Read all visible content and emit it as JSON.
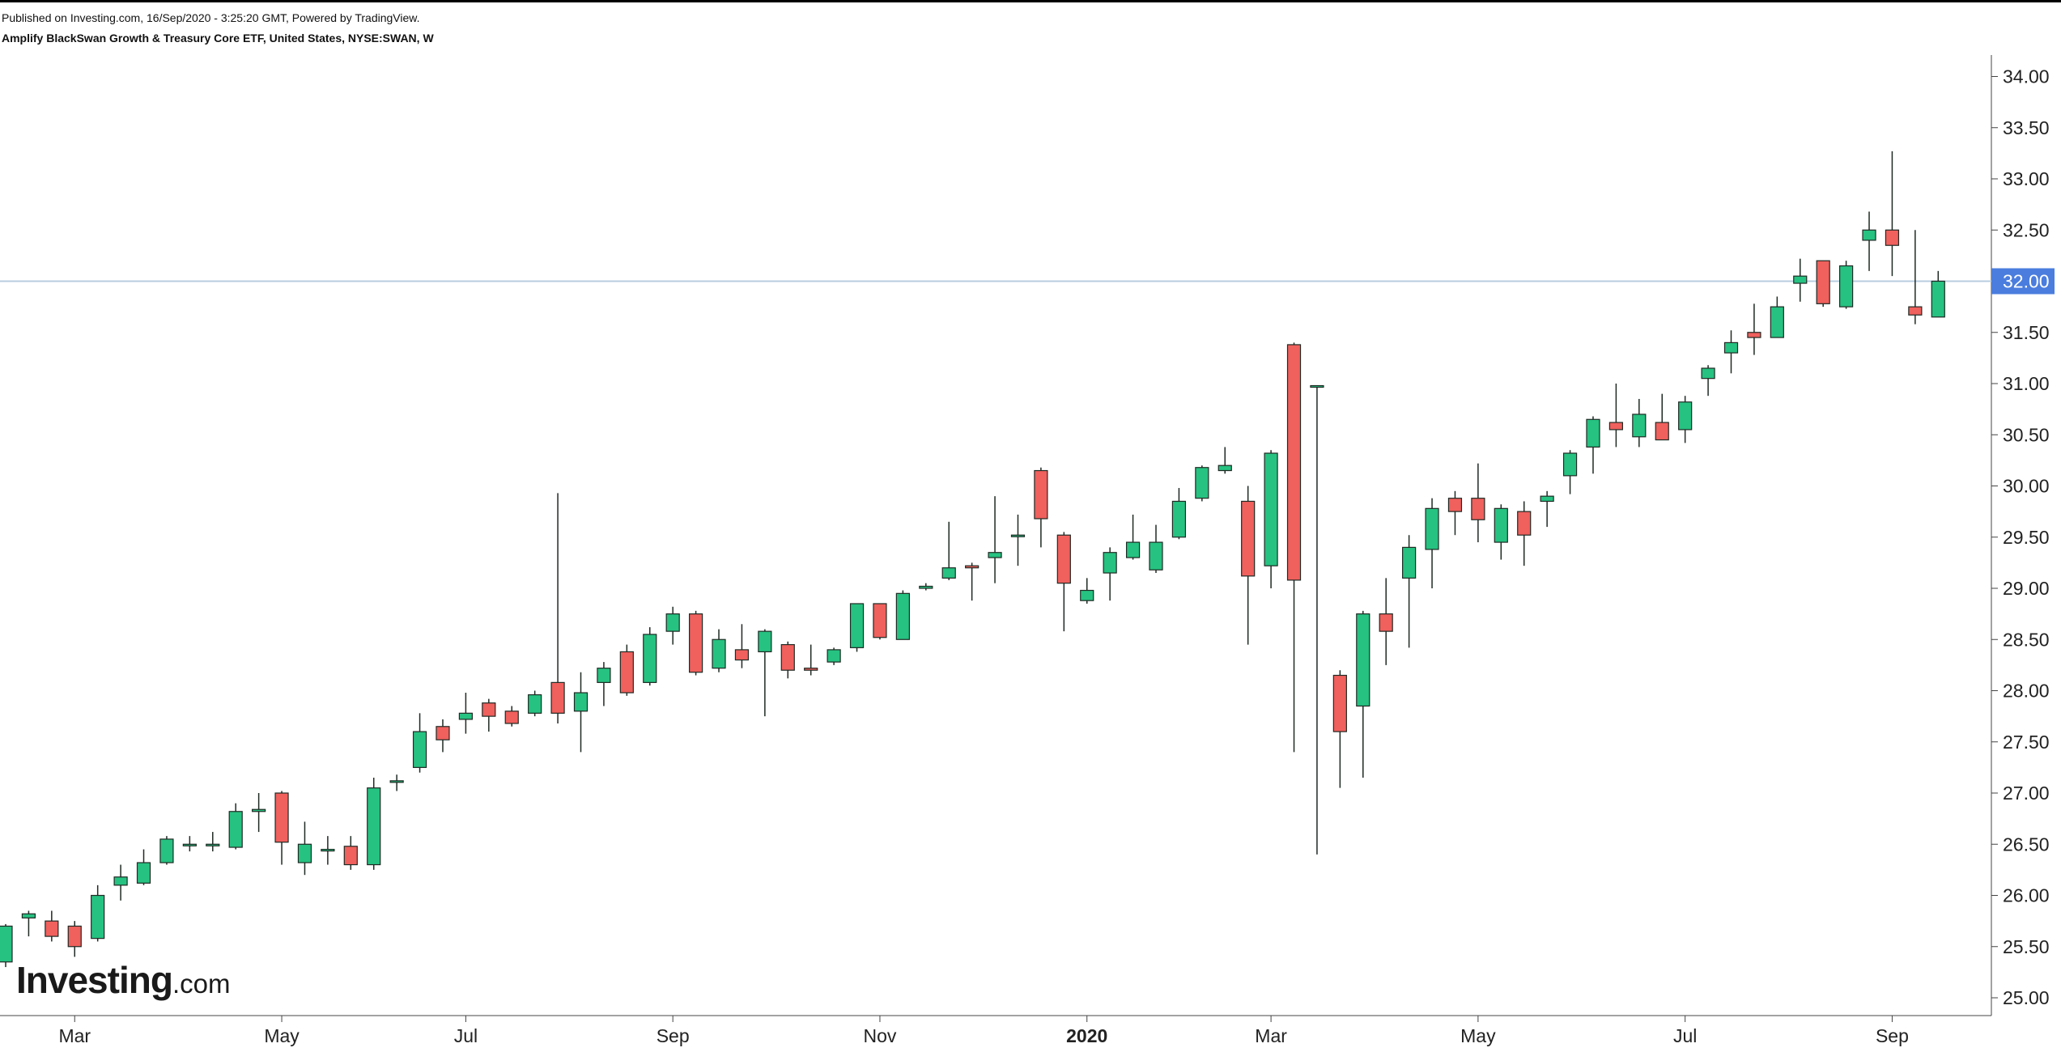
{
  "header": {
    "published": "Published on Investing.com, 16/Sep/2020 - 3:25:20 GMT, Powered by TradingView.",
    "title": "Amplify BlackSwan Growth & Treasury Core ETF, United States, NYSE:SWAN, W"
  },
  "logo": {
    "brand": "Investing",
    "suffix": ".com"
  },
  "colors": {
    "up": "#26c281",
    "down": "#f0605d",
    "outline": "#1f2a24",
    "last_price_badge": "#4a7dde",
    "price_line": "#b8cce0"
  },
  "chart_data": {
    "type": "candlestick",
    "title": "Amplify BlackSwan Growth & Treasury Core ETF, United States, NYSE:SWAN, W",
    "interval": "weekly",
    "ylim": [
      24.8,
      34.3
    ],
    "yticks": [
      "25.00",
      "25.50",
      "26.00",
      "26.50",
      "27.00",
      "27.50",
      "28.00",
      "28.50",
      "29.00",
      "29.50",
      "30.00",
      "30.50",
      "31.00",
      "31.50",
      "32.00",
      "32.50",
      "33.00",
      "33.50",
      "34.00"
    ],
    "last_price": 32.0,
    "last_price_label": "32.00",
    "xticks": [
      {
        "label": "Mar",
        "bar": 3,
        "bold": false
      },
      {
        "label": "May",
        "bar": 12,
        "bold": false
      },
      {
        "label": "Jul",
        "bar": 20,
        "bold": false
      },
      {
        "label": "Sep",
        "bar": 29,
        "bold": false
      },
      {
        "label": "Nov",
        "bar": 38,
        "bold": false
      },
      {
        "label": "2020",
        "bar": 47,
        "bold": true
      },
      {
        "label": "Mar",
        "bar": 55,
        "bold": false
      },
      {
        "label": "May",
        "bar": 64,
        "bold": false
      },
      {
        "label": "Jul",
        "bar": 73,
        "bold": false
      },
      {
        "label": "Sep",
        "bar": 82,
        "bold": false
      }
    ],
    "bars": [
      [
        25.35,
        25.7,
        25.3,
        25.72
      ],
      [
        25.78,
        25.82,
        25.6,
        25.85
      ],
      [
        25.75,
        25.6,
        25.55,
        25.85
      ],
      [
        25.7,
        25.5,
        25.4,
        25.75
      ],
      [
        25.58,
        26.0,
        25.55,
        26.1
      ],
      [
        26.1,
        26.18,
        25.95,
        26.3
      ],
      [
        26.12,
        26.32,
        26.1,
        26.45
      ],
      [
        26.32,
        26.55,
        26.3,
        26.58
      ],
      [
        26.5,
        26.5,
        26.43,
        26.58
      ],
      [
        26.5,
        26.5,
        26.43,
        26.62
      ],
      [
        26.47,
        26.82,
        26.45,
        26.9
      ],
      [
        26.82,
        26.84,
        26.62,
        27.0
      ],
      [
        27.0,
        26.52,
        26.3,
        27.02
      ],
      [
        26.32,
        26.5,
        26.2,
        26.72
      ],
      [
        26.45,
        26.45,
        26.3,
        26.58
      ],
      [
        26.48,
        26.3,
        26.25,
        26.58
      ],
      [
        26.3,
        27.05,
        26.25,
        27.15
      ],
      [
        27.12,
        27.12,
        27.02,
        27.18
      ],
      [
        27.25,
        27.6,
        27.2,
        27.78
      ],
      [
        27.65,
        27.52,
        27.4,
        27.72
      ],
      [
        27.72,
        27.78,
        27.58,
        27.98
      ],
      [
        27.88,
        27.75,
        27.6,
        27.92
      ],
      [
        27.8,
        27.68,
        27.65,
        27.85
      ],
      [
        27.78,
        27.96,
        27.75,
        28.0
      ],
      [
        28.08,
        27.78,
        27.68,
        29.93
      ],
      [
        27.8,
        27.98,
        27.4,
        28.18
      ],
      [
        28.08,
        28.22,
        27.85,
        28.28
      ],
      [
        28.38,
        27.98,
        27.95,
        28.45
      ],
      [
        28.08,
        28.55,
        28.05,
        28.62
      ],
      [
        28.58,
        28.75,
        28.45,
        28.82
      ],
      [
        28.75,
        28.18,
        28.15,
        28.78
      ],
      [
        28.22,
        28.5,
        28.18,
        28.6
      ],
      [
        28.4,
        28.3,
        28.22,
        28.65
      ],
      [
        28.38,
        28.58,
        27.75,
        28.6
      ],
      [
        28.45,
        28.2,
        28.12,
        28.48
      ],
      [
        28.22,
        28.2,
        28.15,
        28.45
      ],
      [
        28.28,
        28.4,
        28.25,
        28.42
      ],
      [
        28.42,
        28.85,
        28.38,
        28.85
      ],
      [
        28.85,
        28.52,
        28.5,
        28.85
      ],
      [
        28.5,
        28.95,
        28.5,
        28.98
      ],
      [
        29.0,
        29.02,
        28.98,
        29.05
      ],
      [
        29.1,
        29.2,
        29.08,
        29.65
      ],
      [
        29.22,
        29.2,
        28.88,
        29.25
      ],
      [
        29.3,
        29.35,
        29.05,
        29.9
      ],
      [
        29.52,
        29.52,
        29.22,
        29.72
      ],
      [
        30.15,
        29.68,
        29.4,
        30.18
      ],
      [
        29.52,
        29.05,
        28.58,
        29.55
      ],
      [
        28.88,
        28.98,
        28.85,
        29.1
      ],
      [
        29.15,
        29.35,
        28.88,
        29.4
      ],
      [
        29.3,
        29.45,
        29.28,
        29.72
      ],
      [
        29.18,
        29.45,
        29.15,
        29.62
      ],
      [
        29.5,
        29.85,
        29.48,
        29.98
      ],
      [
        29.88,
        30.18,
        29.85,
        30.2
      ],
      [
        30.15,
        30.2,
        30.12,
        30.38
      ],
      [
        29.85,
        29.12,
        28.45,
        30.0
      ],
      [
        29.22,
        30.32,
        29.0,
        30.35
      ],
      [
        31.38,
        29.08,
        27.4,
        31.4
      ],
      [
        30.98,
        30.98,
        26.4,
        30.98
      ],
      [
        28.15,
        27.6,
        27.05,
        28.2
      ],
      [
        27.85,
        28.75,
        27.15,
        28.78
      ],
      [
        28.75,
        28.58,
        28.25,
        29.1
      ],
      [
        29.1,
        29.4,
        28.42,
        29.52
      ],
      [
        29.38,
        29.78,
        29.0,
        29.88
      ],
      [
        29.88,
        29.75,
        29.52,
        29.95
      ],
      [
        29.88,
        29.67,
        29.45,
        30.22
      ],
      [
        29.45,
        29.78,
        29.28,
        29.82
      ],
      [
        29.75,
        29.52,
        29.22,
        29.85
      ],
      [
        29.85,
        29.9,
        29.6,
        29.95
      ],
      [
        30.1,
        30.32,
        29.92,
        30.35
      ],
      [
        30.38,
        30.65,
        30.12,
        30.68
      ],
      [
        30.62,
        30.55,
        30.38,
        31.0
      ],
      [
        30.48,
        30.7,
        30.38,
        30.85
      ],
      [
        30.62,
        30.45,
        30.45,
        30.9
      ],
      [
        30.55,
        30.82,
        30.42,
        30.88
      ],
      [
        31.05,
        31.15,
        30.88,
        31.18
      ],
      [
        31.3,
        31.4,
        31.1,
        31.52
      ],
      [
        31.5,
        31.45,
        31.28,
        31.78
      ],
      [
        31.45,
        31.75,
        31.45,
        31.85
      ],
      [
        31.98,
        32.05,
        31.8,
        32.22
      ],
      [
        32.2,
        31.78,
        31.75,
        32.2
      ],
      [
        31.75,
        32.15,
        31.73,
        32.2
      ],
      [
        32.4,
        32.5,
        32.1,
        32.68
      ],
      [
        32.5,
        32.35,
        32.05,
        33.27
      ],
      [
        31.75,
        31.67,
        31.58,
        32.5
      ],
      [
        31.65,
        32.0,
        31.65,
        32.1
      ]
    ]
  }
}
